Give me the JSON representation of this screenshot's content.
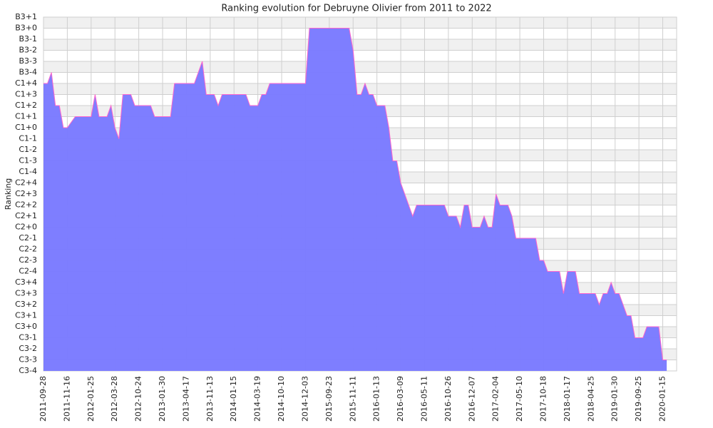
{
  "chart_data": {
    "type": "area",
    "title": "Ranking evolution for Debruyne Olivier from 2011 to 2022",
    "y_label": "Ranking",
    "x": [
      0,
      1,
      2,
      3,
      4,
      5,
      6,
      8,
      12,
      13,
      14,
      16,
      17,
      18,
      19,
      20,
      22,
      23,
      27,
      28,
      32,
      33,
      38,
      40,
      41,
      43,
      44,
      45,
      51,
      52,
      54,
      55,
      56,
      57,
      66,
      67,
      77,
      78,
      79,
      80,
      81,
      82,
      83,
      84,
      86,
      87,
      88,
      89,
      90,
      93,
      94,
      101,
      102,
      104,
      105,
      106,
      107,
      108,
      110,
      111,
      112,
      113,
      114,
      115,
      117,
      118,
      119,
      124,
      125,
      126,
      127,
      130,
      131,
      132,
      134,
      135,
      139,
      140,
      141,
      142,
      143,
      144,
      145,
      146,
      147,
      148,
      149,
      151,
      152,
      155,
      156,
      157
    ],
    "values": [
      26,
      26,
      27,
      24,
      24,
      22,
      22,
      23,
      23,
      25,
      23,
      23,
      24,
      22,
      21,
      25,
      25,
      24,
      24,
      23,
      23,
      26,
      26,
      28,
      25,
      25,
      24,
      25,
      25,
      24,
      24,
      25,
      25,
      26,
      26,
      31,
      31,
      29,
      25,
      25,
      26,
      25,
      25,
      24,
      24,
      22,
      19,
      19,
      17,
      14,
      15,
      15,
      14,
      14,
      13,
      15,
      15,
      13,
      13,
      14,
      13,
      13,
      16,
      15,
      15,
      14,
      12,
      12,
      10,
      10,
      9,
      9,
      7,
      9,
      9,
      7,
      7,
      6,
      7,
      7,
      8,
      7,
      7,
      6,
      5,
      5,
      3,
      3,
      4,
      4,
      1,
      1
    ],
    "fill_color": "#7b7bff",
    "line_color": "#ff66cc",
    "xlim": [
      0,
      159.5
    ],
    "xticks": [
      {
        "value": 0,
        "label": "2011-09-28"
      },
      {
        "value": 6,
        "label": "2011-11-16"
      },
      {
        "value": 12,
        "label": "2012-01-25"
      },
      {
        "value": 18,
        "label": "2012-03-28"
      },
      {
        "value": 24,
        "label": "2012-10-24"
      },
      {
        "value": 30,
        "label": "2013-01-30"
      },
      {
        "value": 36,
        "label": "2013-04-17"
      },
      {
        "value": 42,
        "label": "2013-11-13"
      },
      {
        "value": 48,
        "label": "2014-01-15"
      },
      {
        "value": 54,
        "label": "2014-03-19"
      },
      {
        "value": 60,
        "label": "2014-10-10"
      },
      {
        "value": 66,
        "label": "2014-12-03"
      },
      {
        "value": 72,
        "label": "2015-09-23"
      },
      {
        "value": 78,
        "label": "2015-11-11"
      },
      {
        "value": 84,
        "label": "2016-01-13"
      },
      {
        "value": 90,
        "label": "2016-03-09"
      },
      {
        "value": 96,
        "label": "2016-05-11"
      },
      {
        "value": 102,
        "label": "2016-10-26"
      },
      {
        "value": 108,
        "label": "2016-12-07"
      },
      {
        "value": 114,
        "label": "2017-02-04"
      },
      {
        "value": 120,
        "label": "2017-05-10"
      },
      {
        "value": 126,
        "label": "2017-10-18"
      },
      {
        "value": 132,
        "label": "2018-01-17"
      },
      {
        "value": 138,
        "label": "2018-04-25"
      },
      {
        "value": 144,
        "label": "2019-01-30"
      },
      {
        "value": 150,
        "label": "2019-09-25"
      },
      {
        "value": 156,
        "label": "2020-01-15"
      }
    ],
    "ylim": [
      0,
      32
    ],
    "yticks": [
      {
        "value": 0,
        "label": "C3-4"
      },
      {
        "value": 1,
        "label": "C3-3"
      },
      {
        "value": 2,
        "label": "C3-2"
      },
      {
        "value": 3,
        "label": "C3-1"
      },
      {
        "value": 4,
        "label": "C3+0"
      },
      {
        "value": 5,
        "label": "C3+1"
      },
      {
        "value": 6,
        "label": "C3+2"
      },
      {
        "value": 7,
        "label": "C3+3"
      },
      {
        "value": 8,
        "label": "C3+4"
      },
      {
        "value": 9,
        "label": "C2-4"
      },
      {
        "value": 10,
        "label": "C2-3"
      },
      {
        "value": 11,
        "label": "C2-2"
      },
      {
        "value": 12,
        "label": "C2-1"
      },
      {
        "value": 13,
        "label": "C2+0"
      },
      {
        "value": 14,
        "label": "C2+1"
      },
      {
        "value": 15,
        "label": "C2+2"
      },
      {
        "value": 16,
        "label": "C2+3"
      },
      {
        "value": 17,
        "label": "C2+4"
      },
      {
        "value": 18,
        "label": "C1-4"
      },
      {
        "value": 19,
        "label": "C1-3"
      },
      {
        "value": 20,
        "label": "C1-2"
      },
      {
        "value": 21,
        "label": "C1-1"
      },
      {
        "value": 22,
        "label": "C1+0"
      },
      {
        "value": 23,
        "label": "C1+1"
      },
      {
        "value": 24,
        "label": "C1+2"
      },
      {
        "value": 25,
        "label": "C1+3"
      },
      {
        "value": 26,
        "label": "C1+4"
      },
      {
        "value": 27,
        "label": "B3-4"
      },
      {
        "value": 28,
        "label": "B3-3"
      },
      {
        "value": 29,
        "label": "B3-2"
      },
      {
        "value": 30,
        "label": "B3-1"
      },
      {
        "value": 31,
        "label": "B3+0"
      },
      {
        "value": 32,
        "label": "B3+1"
      }
    ],
    "grid": true
  }
}
